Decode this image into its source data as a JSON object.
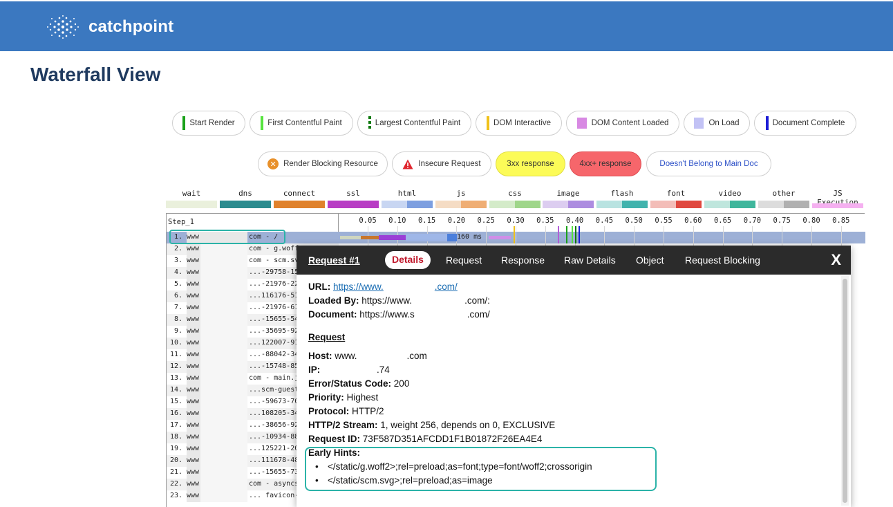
{
  "brand": {
    "name": "catchpoint"
  },
  "page": {
    "title": "Waterfall View"
  },
  "legend_row1": [
    {
      "label": "Start Render",
      "color": "#1aa11a",
      "kind": "line"
    },
    {
      "label": "First Contentful Paint",
      "color": "#57e43f",
      "kind": "line"
    },
    {
      "label": "Largest Contentful Paint",
      "color": "#0f7a0f",
      "kind": "dashed"
    },
    {
      "label": "DOM Interactive",
      "color": "#f0c21a",
      "kind": "line"
    },
    {
      "label": "DOM Content Loaded",
      "color": "#d889e3",
      "kind": "block"
    },
    {
      "label": "On Load",
      "color": "#c2c2f5",
      "kind": "block"
    },
    {
      "label": "Document Complete",
      "color": "#1c1cd6",
      "kind": "line"
    }
  ],
  "legend_row2": [
    {
      "label": "Render Blocking Resource",
      "icon": "render-blocking-icon"
    },
    {
      "label": "Insecure Request",
      "icon": "warning-icon"
    },
    {
      "label": "3xx response",
      "color": "#fcfb58"
    },
    {
      "label": "4xx+ response",
      "color": "#f6666b"
    },
    {
      "label": "Doesn't Belong to Main Doc",
      "color": "#2b4fc7"
    }
  ],
  "types": [
    {
      "label": "wait",
      "c1": "#eaf0dc",
      "c2": "#eaf0dc"
    },
    {
      "label": "dns",
      "c1": "#2c8c8f",
      "c2": "#2c8c8f"
    },
    {
      "label": "connect",
      "c1": "#e0822c",
      "c2": "#e0822c"
    },
    {
      "label": "ssl",
      "c1": "#b83dc4",
      "c2": "#b83dc4"
    },
    {
      "label": "html",
      "c1": "#c8d6f2",
      "c2": "#7d9fe0"
    },
    {
      "label": "js",
      "c1": "#f5dcc4",
      "c2": "#efae74"
    },
    {
      "label": "css",
      "c1": "#d4ebc9",
      "c2": "#9fd68a"
    },
    {
      "label": "image",
      "c1": "#dccdf0",
      "c2": "#ad8de0"
    },
    {
      "label": "flash",
      "c1": "#b9e3e1",
      "c2": "#41b3ad"
    },
    {
      "label": "font",
      "c1": "#f3bdb8",
      "c2": "#e0483f"
    },
    {
      "label": "video",
      "c1": "#bfe6dd",
      "c2": "#3fb69c"
    },
    {
      "label": "other",
      "c1": "#dcdcdc",
      "c2": "#b0b0b0"
    },
    {
      "label": "JS Execution",
      "c1": "#f5b0f0",
      "c2": "#f5b0f0"
    }
  ],
  "waterfall": {
    "step": "Step_1",
    "ticks": [
      "0.05",
      "0.10",
      "0.15",
      "0.20",
      "0.25",
      "0.30",
      "0.35",
      "0.40",
      "0.45",
      "0.50",
      "0.55",
      "0.60",
      "0.65",
      "0.70",
      "0.75",
      "0.80",
      "0.85"
    ],
    "row1_duration": "160 ms",
    "rows": [
      {
        "num": "1.",
        "host": "www",
        "path": "com - /"
      },
      {
        "num": "2.",
        "host": "www",
        "path": "com - g.woff"
      },
      {
        "num": "3.",
        "host": "www",
        "path": "com - scm.sv"
      },
      {
        "num": "4.",
        "host": "www",
        "path": "...-29758-15"
      },
      {
        "num": "5.",
        "host": "www",
        "path": "...-21976-22"
      },
      {
        "num": "6.",
        "host": "www",
        "path": "...116176-51"
      },
      {
        "num": "7.",
        "host": "www",
        "path": "...-21976-61"
      },
      {
        "num": "8.",
        "host": "www",
        "path": "...-15655-54"
      },
      {
        "num": "9.",
        "host": "www",
        "path": "...-35695-92"
      },
      {
        "num": "10.",
        "host": "www",
        "path": "...122007-91"
      },
      {
        "num": "11.",
        "host": "www",
        "path": "...-88042-34"
      },
      {
        "num": "12.",
        "host": "www",
        "path": "...-15748-85"
      },
      {
        "num": "13.",
        "host": "www",
        "path": "com - main.j"
      },
      {
        "num": "14.",
        "host": "www",
        "path": "...scm-guest"
      },
      {
        "num": "15.",
        "host": "www",
        "path": "...-59673-70"
      },
      {
        "num": "16.",
        "host": "www",
        "path": "...108205-34"
      },
      {
        "num": "17.",
        "host": "www",
        "path": "...-38656-92"
      },
      {
        "num": "18.",
        "host": "www",
        "path": "...-10934-88"
      },
      {
        "num": "19.",
        "host": "www",
        "path": "...125221-20"
      },
      {
        "num": "20.",
        "host": "www",
        "path": "...111678-48"
      },
      {
        "num": "21.",
        "host": "www",
        "path": "...-15655-73"
      },
      {
        "num": "22.",
        "host": "www",
        "path": "com - asyncs"
      },
      {
        "num": "23.",
        "host": "www",
        "path": "... favicon-"
      }
    ]
  },
  "dialog": {
    "tabs": {
      "request_num": "Request #1",
      "details": "Details",
      "request": "Request",
      "response": "Response",
      "raw": "Raw Details",
      "object": "Object",
      "blocking": "Request Blocking"
    },
    "close": "X",
    "url_label": "URL:",
    "url_value": "https://www.",
    "url_suffix": ".com/",
    "loaded_by_label": "Loaded By:",
    "loaded_by_value": "https://www.",
    "loaded_by_suffix": ".com/:",
    "document_label": "Document:",
    "document_value": "https://www.s",
    "document_suffix": ".com/",
    "request_heading": "Request",
    "host_label": "Host:",
    "host_value": "www.",
    "host_suffix": ".com",
    "ip_label": "IP:",
    "ip_value": ".74",
    "status_label": "Error/Status Code:",
    "status_value": "200",
    "priority_label": "Priority:",
    "priority_value": "Highest",
    "protocol_label": "Protocol:",
    "protocol_value": "HTTP/2",
    "stream_label": "HTTP/2 Stream:",
    "stream_value": "1, weight 256, depends on 0, EXCLUSIVE",
    "reqid_label": "Request ID:",
    "reqid_value": "73F587D351AFCDD1F1B01872F26EA4E4",
    "hints_label": "Early Hints:",
    "hints": [
      "</static/g.woff2>;rel=preload;as=font;type=font/woff2;crossorigin",
      "</static/scm.svg>;rel=preload;as=image"
    ]
  }
}
